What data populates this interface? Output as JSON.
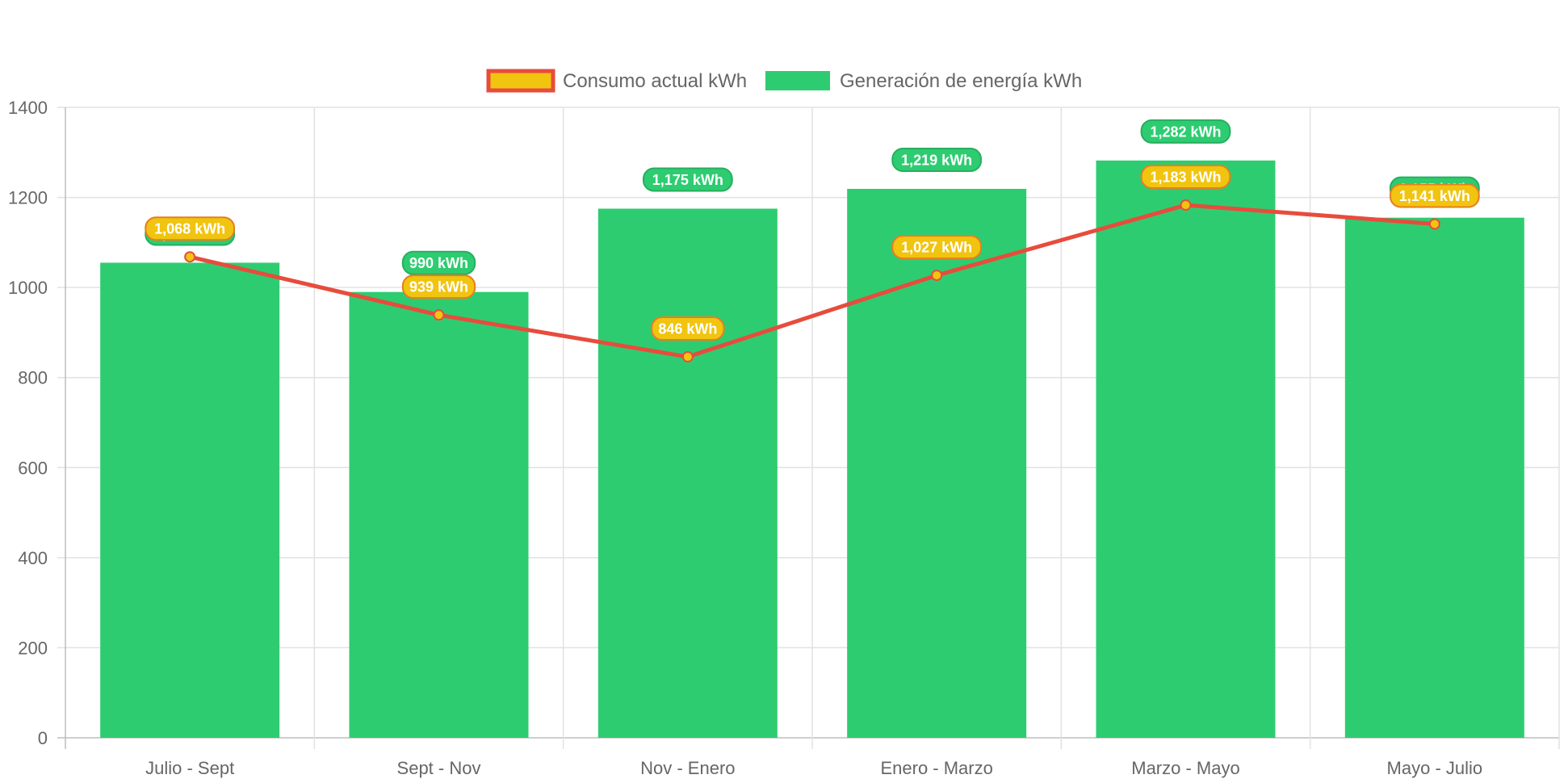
{
  "chart_data": {
    "type": "bar",
    "categories": [
      "Julio - Sept",
      "Sept - Nov",
      "Nov - Enero",
      "Enero - Marzo",
      "Marzo - Mayo",
      "Mayo - Julio"
    ],
    "series": [
      {
        "name": "Consumo actual kWh",
        "type": "line",
        "values": [
          1068,
          939,
          846,
          1027,
          1183,
          1141
        ],
        "labels": [
          "1,068 kWh",
          "939 kWh",
          "846 kWh",
          "1,027 kWh",
          "1,183 kWh",
          "1,141 kWh"
        ],
        "color": "#e74c3c",
        "fill_color": "#f1c40f"
      },
      {
        "name": "Generación de energía kWh",
        "type": "bar",
        "values": [
          1055,
          990,
          1175,
          1219,
          1282,
          1155
        ],
        "labels": [
          "1,055 kWh",
          "990 kWh",
          "1,175 kWh",
          "1,219 kWh",
          "1,282 kWh",
          "1,155 kWh"
        ],
        "color": "#2ecc71"
      }
    ],
    "yticks": [
      "0",
      "200",
      "400",
      "600",
      "800",
      "1000",
      "1200",
      "1400"
    ],
    "ylim": [
      0,
      1400
    ],
    "grid": true,
    "legend_position": "top-center"
  }
}
